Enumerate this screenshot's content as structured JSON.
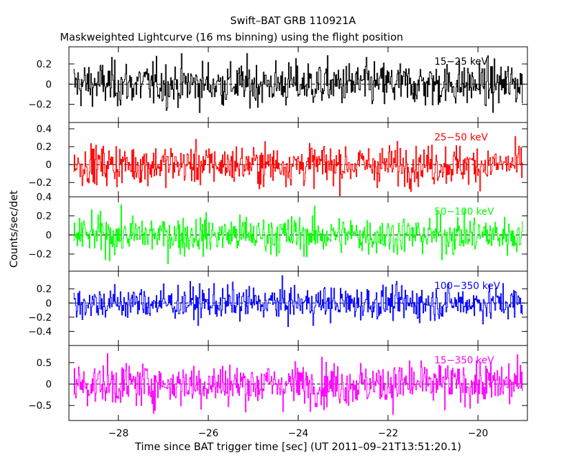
{
  "chart_data": {
    "type": "line",
    "title": "Swift–BAT GRB 110921A",
    "subtitle": "Maskweighted Lightcurve (16 ms binning) using the flight position",
    "xlabel": "Time since BAT trigger time [sec] (UT 2011–09–21T13:51:20.1)",
    "ylabel": "Counts/sec/det",
    "xlim": [
      -29.1,
      -18.9
    ],
    "x_range_data": [
      -29.0,
      -19.0
    ],
    "x_bin_sec": 0.016,
    "xticks": [
      -28,
      -26,
      -24,
      -22,
      -20
    ],
    "xtick_labels": [
      "−28",
      "−26",
      "−24",
      "−22",
      "−20"
    ],
    "grid": false,
    "panels": [
      {
        "name": "15−25 keV",
        "color": "#000000",
        "ylim": [
          -0.38,
          0.37
        ],
        "yticks": [
          -0.2,
          0,
          0.2
        ],
        "ytick_labels": [
          "−0.2",
          "0",
          "0.2"
        ],
        "amplitude": 0.11
      },
      {
        "name": "25−50 keV",
        "color": "#ff0000",
        "ylim": [
          -0.36,
          0.47
        ],
        "yticks": [
          -0.2,
          0,
          0.2,
          0.4
        ],
        "ytick_labels": [
          "−0.2",
          "0",
          "0.2",
          "0.4"
        ],
        "amplitude": 0.11
      },
      {
        "name": "50−100 keV",
        "color": "#00ff00",
        "ylim": [
          -0.38,
          0.4
        ],
        "yticks": [
          -0.2,
          0,
          0.2,
          0.4
        ],
        "ytick_labels": [
          "−0.2",
          "0",
          "0.2",
          "0.4"
        ],
        "amplitude": 0.1
      },
      {
        "name": "100−350 keV",
        "color": "#0000ff",
        "ylim": [
          -0.6,
          0.45
        ],
        "yticks": [
          -0.4,
          -0.2,
          0,
          0.2
        ],
        "ytick_labels": [
          "−0.4",
          "−0.2",
          "0",
          "0.2"
        ],
        "amplitude": 0.12
      },
      {
        "name": "15−350 keV",
        "color": "#ff00ff",
        "ylim": [
          -0.85,
          0.9
        ],
        "yticks": [
          -0.5,
          0,
          0.5
        ],
        "ytick_labels": [
          "−0.5",
          "0",
          "0.5"
        ],
        "amplitude": 0.25
      }
    ]
  }
}
